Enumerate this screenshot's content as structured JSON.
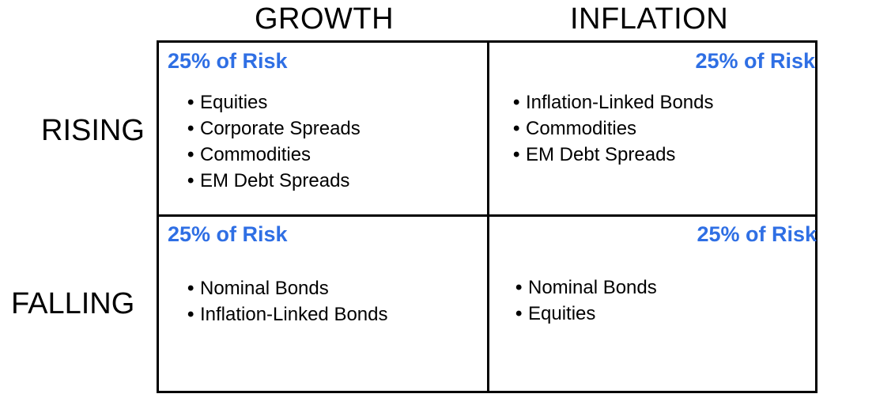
{
  "columns": {
    "growth": "GROWTH",
    "inflation": "INFLATION"
  },
  "rows": {
    "rising": "RISING",
    "falling": "FALLING"
  },
  "colors": {
    "risk_text": "#2f6fe4",
    "lines": "#000000"
  },
  "quadrants": {
    "rising_growth": {
      "risk": "25% of Risk",
      "items": [
        "Equities",
        "Corporate Spreads",
        "Commodities",
        "EM Debt Spreads"
      ]
    },
    "rising_inflation": {
      "risk": "25% of Risk",
      "items": [
        "Inflation-Linked Bonds",
        "Commodities",
        "EM Debt Spreads"
      ]
    },
    "falling_growth": {
      "risk": "25% of Risk",
      "items": [
        "Nominal Bonds",
        "Inflation-Linked Bonds"
      ]
    },
    "falling_inflation": {
      "risk": "25% of Risk",
      "items": [
        "Nominal Bonds",
        "Equities"
      ]
    }
  }
}
